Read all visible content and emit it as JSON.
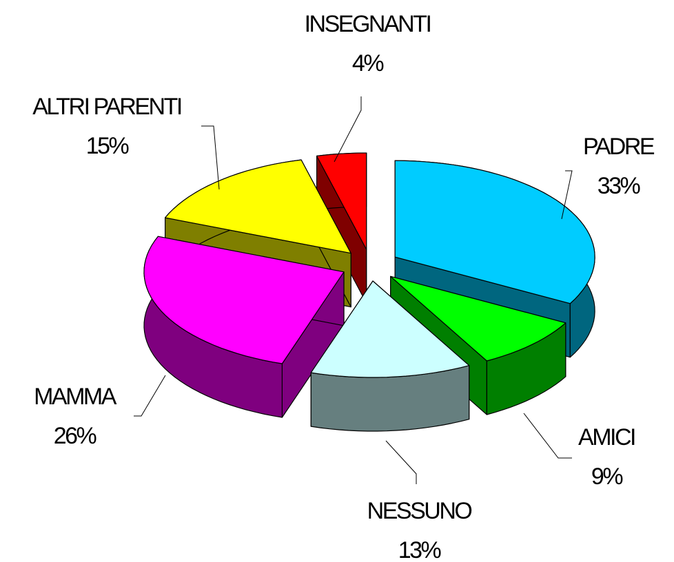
{
  "chart_data": {
    "type": "pie",
    "categories": [
      "PADRE",
      "AMICI",
      "NESSUNO",
      "MAMMA",
      "ALTRI PARENTI",
      "INSEGNANTI"
    ],
    "values": [
      33,
      9,
      13,
      26,
      15,
      4
    ],
    "value_labels": [
      "33%",
      "9%",
      "13%",
      "26%",
      "15%",
      "4%"
    ],
    "colors": [
      "#00ccff",
      "#00ff00",
      "#ccffff",
      "#ff00ff",
      "#ffff00",
      "#ff0000"
    ]
  }
}
